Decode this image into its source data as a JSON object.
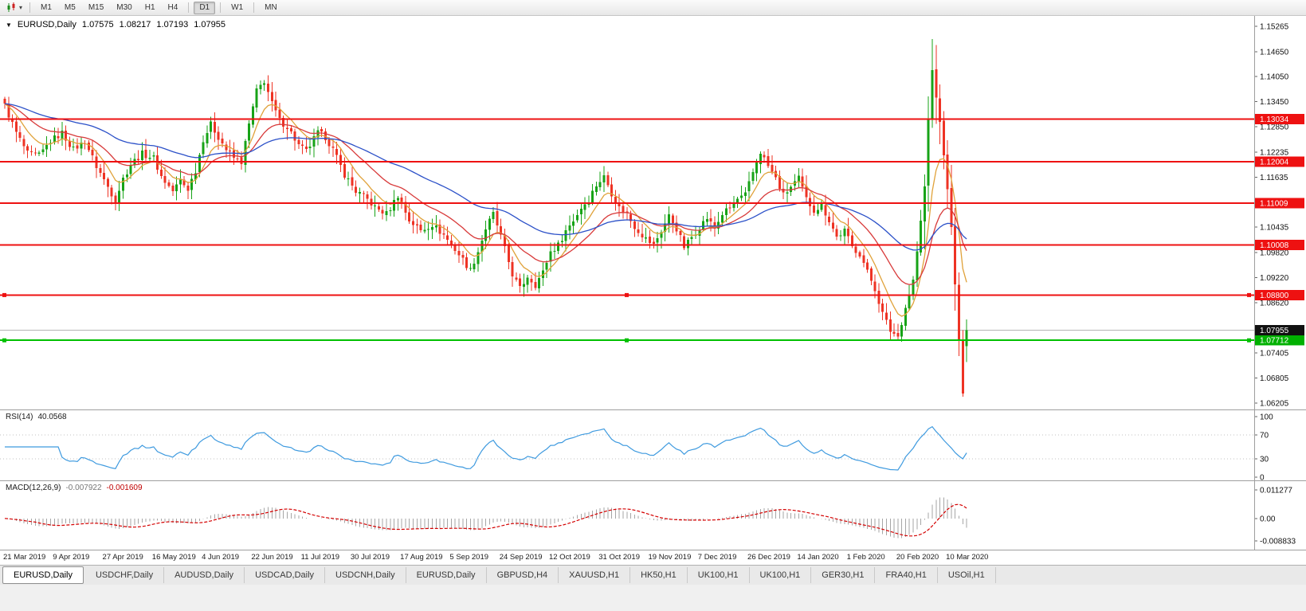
{
  "toolbar": {
    "chart_type_icon": "candlestick-chart",
    "dropdown_caret": "▾",
    "timeframe_groups": [
      [
        "M1",
        "M5",
        "M15",
        "M30",
        "H1",
        "H4"
      ],
      [
        "D1"
      ],
      [
        "W1"
      ],
      [
        "MN"
      ]
    ],
    "active_timeframe": "D1"
  },
  "chart_header": {
    "collapse_icon": "▼",
    "title": "EURUSD,Daily",
    "open": "1.07575",
    "high": "1.08217",
    "low": "1.07193",
    "close": "1.07955"
  },
  "colors": {
    "bull": "#17a317",
    "bear": "#ee3324",
    "line_red": "#ee1111",
    "line_green": "#00c000",
    "current_price_line": "#b4b4b4",
    "level_label_bg": "#ee1111",
    "support_label_bg": "#00b000",
    "current_price_bg": "#111111",
    "pane_border": "#9e9e9e",
    "axis_text": "#111111"
  },
  "chart_data": {
    "type": "candlestick",
    "symbol": "EURUSD",
    "period": "Daily",
    "candle_count": 253,
    "price_max": 1.1551,
    "price_min": 1.0605,
    "y_axis_labels": [
      "1.15265",
      "1.14650",
      "1.14050",
      "1.13450",
      "1.12850",
      "1.12235",
      "1.11635",
      "1.11035",
      "1.10435",
      "1.09820",
      "1.09220",
      "1.08620",
      "1.07405",
      "1.06805",
      "1.06205"
    ],
    "x_axis_labels": [
      "21 Mar 2019",
      "9 Apr 2019",
      "27 Apr 2019",
      "16 May 2019",
      "4 Jun 2019",
      "22 Jun 2019",
      "11 Jul 2019",
      "30 Jul 2019",
      "17 Aug 2019",
      "5 Sep 2019",
      "24 Sep 2019",
      "12 Oct 2019",
      "31 Oct 2019",
      "19 Nov 2019",
      "7 Dec 2019",
      "26 Dec 2019",
      "14 Jan 2020",
      "1 Feb 2020",
      "20 Feb 2020",
      "10 Mar 2020"
    ],
    "x_label_candle_step": 13,
    "close_waypoints": [
      [
        0,
        1.1335
      ],
      [
        3,
        1.127
      ],
      [
        6,
        1.122
      ],
      [
        9,
        1.1215
      ],
      [
        12,
        1.125
      ],
      [
        15,
        1.127
      ],
      [
        18,
        1.123
      ],
      [
        21,
        1.125
      ],
      [
        24,
        1.119
      ],
      [
        27,
        1.114
      ],
      [
        29,
        1.1108
      ],
      [
        31,
        1.116
      ],
      [
        33,
        1.1195
      ],
      [
        36,
        1.122
      ],
      [
        39,
        1.121
      ],
      [
        41,
        1.1165
      ],
      [
        44,
        1.113
      ],
      [
        46,
        1.1155
      ],
      [
        48,
        1.1135
      ],
      [
        50,
        1.118
      ],
      [
        52,
        1.1255
      ],
      [
        54,
        1.129
      ],
      [
        56,
        1.126
      ],
      [
        58,
        1.123
      ],
      [
        60,
        1.121
      ],
      [
        62,
        1.12
      ],
      [
        64,
        1.129
      ],
      [
        66,
        1.137
      ],
      [
        68,
        1.1395
      ],
      [
        70,
        1.134
      ],
      [
        72,
        1.13
      ],
      [
        74,
        1.1285
      ],
      [
        77,
        1.124
      ],
      [
        79,
        1.1225
      ],
      [
        82,
        1.127
      ],
      [
        84,
        1.126
      ],
      [
        86,
        1.123
      ],
      [
        89,
        1.117
      ],
      [
        92,
        1.113
      ],
      [
        95,
        1.111
      ],
      [
        97,
        1.109
      ],
      [
        100,
        1.1075
      ],
      [
        103,
        1.112
      ],
      [
        106,
        1.106
      ],
      [
        109,
        1.1035
      ],
      [
        112,
        1.105
      ],
      [
        115,
        1.1025
      ],
      [
        118,
        1.099
      ],
      [
        120,
        1.0965
      ],
      [
        122,
        1.094
      ],
      [
        124,
        1.0985
      ],
      [
        126,
        1.104
      ],
      [
        128,
        1.1075
      ],
      [
        130,
        1.102
      ],
      [
        133,
        1.093
      ],
      [
        135,
        1.0895
      ],
      [
        137,
        1.0925
      ],
      [
        139,
        1.0905
      ],
      [
        141,
        1.0935
      ],
      [
        143,
        1.0985
      ],
      [
        145,
        1.1
      ],
      [
        147,
        1.1035
      ],
      [
        149,
        1.106
      ],
      [
        151,
        1.109
      ],
      [
        153,
        1.111
      ],
      [
        155,
        1.1145
      ],
      [
        157,
        1.1165
      ],
      [
        159,
        1.1125
      ],
      [
        161,
        1.109
      ],
      [
        163,
        1.1075
      ],
      [
        165,
        1.1045
      ],
      [
        168,
        1.1015
      ],
      [
        170,
        1.1
      ],
      [
        172,
        1.1035
      ],
      [
        174,
        1.107
      ],
      [
        176,
        1.104
      ],
      [
        178,
        1.0995
      ],
      [
        180,
        1.102
      ],
      [
        182,
        1.1045
      ],
      [
        184,
        1.1065
      ],
      [
        186,
        1.104
      ],
      [
        188,
        1.1075
      ],
      [
        190,
        1.109
      ],
      [
        192,
        1.111
      ],
      [
        194,
        1.112
      ],
      [
        196,
        1.1175
      ],
      [
        198,
        1.1225
      ],
      [
        200,
        1.119
      ],
      [
        202,
        1.116
      ],
      [
        204,
        1.112
      ],
      [
        206,
        1.114
      ],
      [
        208,
        1.116
      ],
      [
        210,
        1.111
      ],
      [
        212,
        1.1085
      ],
      [
        214,
        1.1095
      ],
      [
        216,
        1.106
      ],
      [
        218,
        1.102
      ],
      [
        220,
        1.1035
      ],
      [
        222,
        1.0995
      ],
      [
        224,
        1.098
      ],
      [
        226,
        1.0935
      ],
      [
        228,
        1.0895
      ],
      [
        230,
        1.0835
      ],
      [
        232,
        1.0795
      ],
      [
        234,
        1.078
      ],
      [
        236,
        1.085
      ],
      [
        238,
        1.0915
      ],
      [
        239,
        1.0985
      ],
      [
        240,
        1.1055
      ],
      [
        241,
        1.114
      ],
      [
        242,
        1.13
      ],
      [
        243,
        1.142
      ],
      [
        244,
        1.136
      ],
      [
        245,
        1.129
      ],
      [
        246,
        1.122
      ],
      [
        247,
        1.113
      ],
      [
        248,
        1.105
      ],
      [
        249,
        1.09
      ],
      [
        250,
        1.077
      ],
      [
        251,
        1.0645
      ],
      [
        252,
        1.07955
      ]
    ],
    "last_candle": {
      "open": 1.07575,
      "high": 1.08217,
      "low": 1.07193,
      "close": 1.07955
    },
    "spike_high": {
      "index": 243,
      "price": 1.1495
    },
    "spike_low": {
      "index": 251,
      "price": 1.0636
    },
    "resistance_lines": [
      {
        "price": 1.13034,
        "label": "1.13034",
        "handles": false
      },
      {
        "price": 1.12004,
        "label": "1.12004",
        "handles": false
      },
      {
        "price": 1.11009,
        "label": "1.11009",
        "handles": false
      },
      {
        "price": 1.10008,
        "label": "1.10008",
        "handles": false
      },
      {
        "price": 1.088,
        "label": "1.08800",
        "handles": true
      }
    ],
    "support_line": {
      "price": 1.07712,
      "label": "1.07712",
      "handles": true
    },
    "current_price": {
      "price": 1.07955,
      "label": "1.07955"
    },
    "moving_averages": [
      {
        "name": "fast",
        "period": 8,
        "color": "#e0a23a"
      },
      {
        "name": "medium",
        "period": 21,
        "color": "#d83a3a"
      },
      {
        "name": "slow",
        "period": 55,
        "color": "#2b50c8"
      }
    ],
    "indicators": [
      {
        "name": "RSI",
        "label": "RSI(14)",
        "value": "40.0568",
        "period": 14,
        "axis_labels": [
          "100",
          "70",
          "30",
          "0"
        ],
        "levels": [
          70,
          30
        ],
        "color": "#3e9adf"
      },
      {
        "name": "MACD",
        "label": "MACD(12,26,9)",
        "fast": 12,
        "slow": 26,
        "signal": 9,
        "main_value": "-0.007922",
        "signal_value": "-0.001609",
        "axis_labels": [
          "0.011277",
          "0.00",
          "-0.008833"
        ],
        "histogram_color": "#a6a6a6",
        "signal_color": "#d40000"
      }
    ]
  },
  "bottom_tabs": {
    "tabs": [
      {
        "label": "EURUSD,Daily",
        "active": true
      },
      {
        "label": "USDCHF,Daily",
        "active": false
      },
      {
        "label": "AUDUSD,Daily",
        "active": false
      },
      {
        "label": "USDCAD,Daily",
        "active": false
      },
      {
        "label": "USDCNH,Daily",
        "active": false
      },
      {
        "label": "EURUSD,Daily",
        "active": false
      },
      {
        "label": "GBPUSD,H4",
        "active": false
      },
      {
        "label": "XAUUSD,H1",
        "active": false
      },
      {
        "label": "HK50,H1",
        "active": false
      },
      {
        "label": "UK100,H1",
        "active": false
      },
      {
        "label": "UK100,H1",
        "active": false
      },
      {
        "label": "GER30,H1",
        "active": false
      },
      {
        "label": "FRA40,H1",
        "active": false
      },
      {
        "label": "USOil,H1",
        "active": false
      }
    ]
  }
}
